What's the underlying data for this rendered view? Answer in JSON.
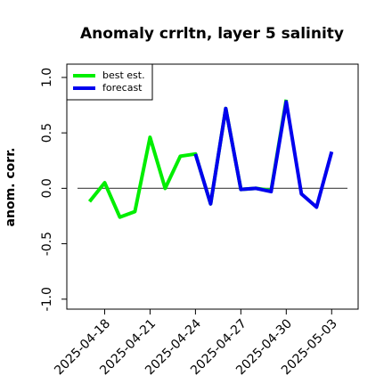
{
  "chart_data": {
    "type": "line",
    "title": "Anomaly crrltn, layer 5 salinity",
    "y_label": "anom. corr.",
    "x": [
      "2025-04-17",
      "2025-04-18",
      "2025-04-19",
      "2025-04-20",
      "2025-04-21",
      "2025-04-22",
      "2025-04-23",
      "2025-04-24",
      "2025-04-25",
      "2025-04-26",
      "2025-04-27",
      "2025-04-28",
      "2025-04-29",
      "2025-04-30",
      "2025-05-01",
      "2025-05-02",
      "2025-05-03"
    ],
    "series": [
      {
        "name": "best est.",
        "color": "#00ee00",
        "values": [
          -0.12,
          0.05,
          -0.26,
          -0.21,
          0.46,
          0.0,
          0.29,
          0.31,
          -0.14,
          0.72,
          -0.01,
          0.0,
          -0.02,
          0.8,
          null,
          null,
          null
        ]
      },
      {
        "name": "forecast",
        "color": "#0000ee",
        "values": [
          null,
          null,
          null,
          null,
          null,
          null,
          null,
          0.31,
          -0.14,
          0.72,
          -0.01,
          0.0,
          -0.03,
          0.78,
          -0.05,
          -0.17,
          0.33
        ]
      }
    ],
    "xlim": [
      "2025-04-15T12:00",
      "2025-05-04T18:00"
    ],
    "xticks": [
      "2025-04-18",
      "2025-04-21",
      "2025-04-24",
      "2025-04-27",
      "2025-04-30",
      "2025-05-03"
    ],
    "xtick_label_colors": [
      "#000000",
      "#000000",
      "#228b22",
      "#000000",
      "#000000",
      "#000000"
    ],
    "ylim": [
      -1.09,
      1.12
    ],
    "yticks": [
      {
        "value": -1,
        "label": "-1.0"
      },
      -0.5,
      {
        "value": 0,
        "label": "0.0"
      },
      0.5,
      {
        "value": 1,
        "label": "1.0"
      }
    ],
    "hline": 0,
    "legend": "top-left"
  }
}
